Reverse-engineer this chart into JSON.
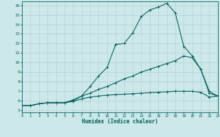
{
  "title": "",
  "xlabel": "Humidex (Indice chaleur)",
  "xlim": [
    0,
    23
  ],
  "ylim": [
    5,
    16
  ],
  "xticks": [
    0,
    1,
    2,
    3,
    4,
    5,
    6,
    7,
    8,
    9,
    10,
    11,
    12,
    13,
    14,
    15,
    16,
    17,
    18,
    19,
    20,
    21,
    22,
    23
  ],
  "yticks": [
    5,
    6,
    7,
    8,
    9,
    10,
    11,
    12,
    13,
    14,
    15,
    16
  ],
  "bg_color": "#cde8e8",
  "grid_color": "#aacccc",
  "line_color": "#005f5f",
  "curve1_x": [
    0,
    1,
    2,
    3,
    4,
    5,
    6,
    7,
    8,
    9,
    10,
    11,
    12,
    13,
    14,
    15,
    16,
    17,
    18,
    19,
    20,
    21,
    22,
    23
  ],
  "curve1_y": [
    5.5,
    5.5,
    5.7,
    5.8,
    5.8,
    5.8,
    6.1,
    6.5,
    7.5,
    8.6,
    9.5,
    11.9,
    12.0,
    13.1,
    14.8,
    15.5,
    15.8,
    16.2,
    15.2,
    11.7,
    10.7,
    9.3,
    7.0,
    6.5
  ],
  "curve2_x": [
    0,
    1,
    2,
    3,
    4,
    5,
    6,
    7,
    8,
    9,
    10,
    11,
    12,
    13,
    14,
    15,
    16,
    17,
    18,
    19,
    20,
    21,
    22,
    23
  ],
  "curve2_y": [
    5.5,
    5.5,
    5.7,
    5.8,
    5.8,
    5.8,
    6.0,
    6.5,
    6.8,
    7.2,
    7.5,
    7.9,
    8.3,
    8.6,
    9.0,
    9.3,
    9.6,
    9.9,
    10.2,
    10.7,
    10.5,
    9.3,
    6.8,
    6.5
  ],
  "curve3_x": [
    0,
    1,
    2,
    3,
    4,
    5,
    6,
    7,
    8,
    9,
    10,
    11,
    12,
    13,
    14,
    15,
    16,
    17,
    18,
    19,
    20,
    21,
    22,
    23
  ],
  "curve3_y": [
    5.5,
    5.5,
    5.7,
    5.8,
    5.8,
    5.8,
    5.95,
    6.2,
    6.4,
    6.5,
    6.6,
    6.65,
    6.7,
    6.75,
    6.8,
    6.85,
    6.9,
    6.95,
    7.0,
    7.0,
    7.0,
    6.9,
    6.4,
    6.5
  ],
  "markersize": 3,
  "linewidth": 0.8
}
